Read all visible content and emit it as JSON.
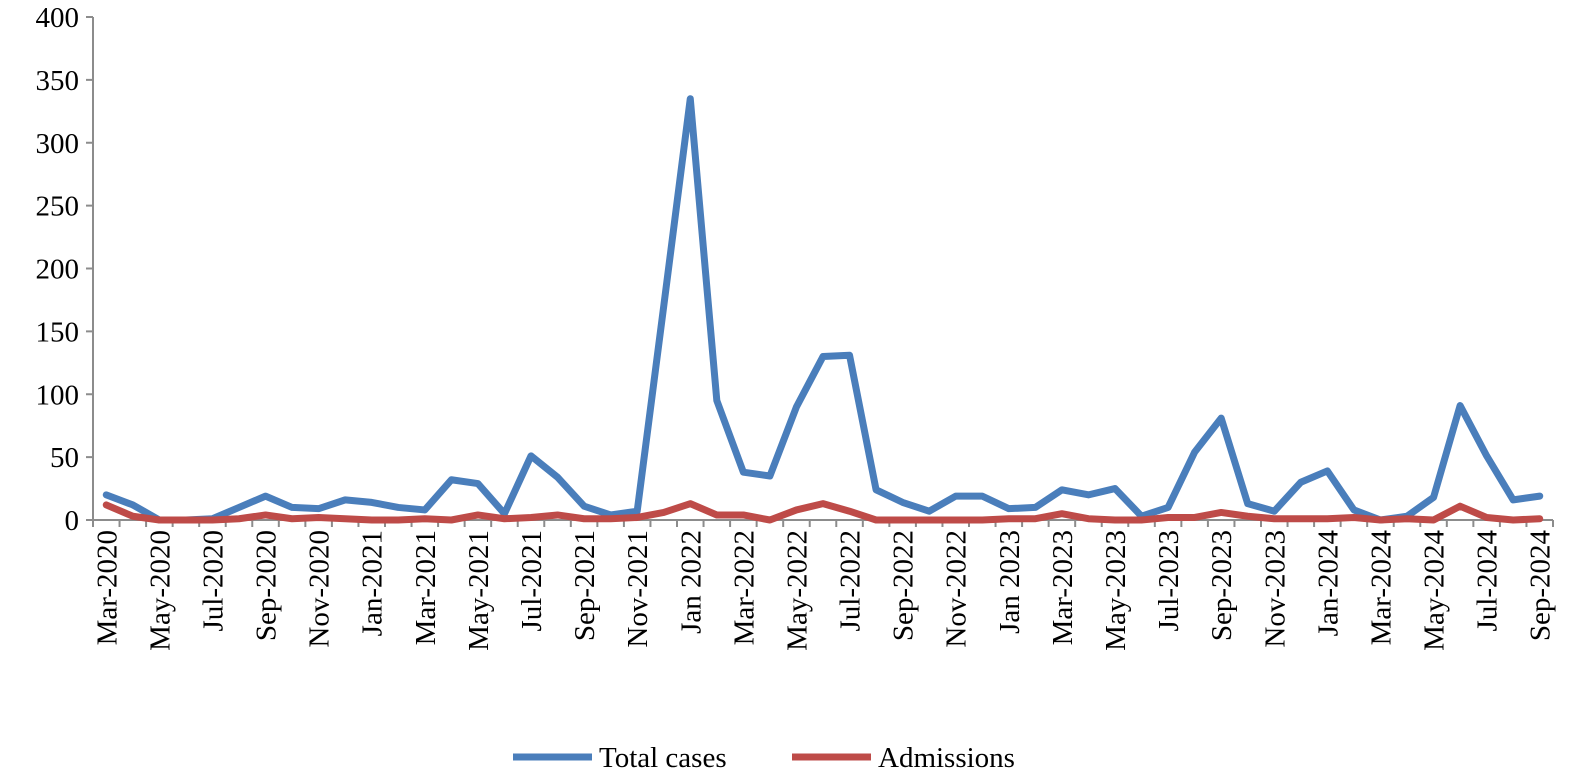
{
  "chart_data": {
    "type": "line",
    "title": "",
    "xlabel": "",
    "ylabel": "",
    "ylim": [
      0,
      400
    ],
    "yticks": [
      0,
      50,
      100,
      150,
      200,
      250,
      300,
      350,
      400
    ],
    "grid": false,
    "legend_position": "bottom",
    "categories": [
      "Mar-2020",
      "Apr-2020",
      "May-2020",
      "Jun-2020",
      "Jul-2020",
      "Aug-2020",
      "Sep-2020",
      "Oct-2020",
      "Nov-2020",
      "Dec-2020",
      "Jan-2021",
      "Feb-2021",
      "Mar-2021",
      "Apr-2021",
      "May-2021",
      "Jun-2021",
      "Jul-2021",
      "Aug-2021",
      "Sep-2021",
      "Oct-2021",
      "Nov-2021",
      "Dec-2021",
      "Jan 2022",
      "Feb-2022",
      "Mar-2022",
      "Apr-2022",
      "May-2022",
      "Jun-2022",
      "Jul-2022",
      "Aug-2022",
      "Sep-2022",
      "Oct-2022",
      "Nov-2022",
      "Dec-2022",
      "Jan 2023",
      "Feb-2023",
      "Mar-2023",
      "Apr-2023",
      "May-2023",
      "Jun-2023",
      "Jul-2023",
      "Aug-2023",
      "Sep-2023",
      "Oct-2023",
      "Nov-2023",
      "Dec-2023",
      "Jan-2024",
      "Feb-2024",
      "Mar-2024",
      "Apr-2024",
      "May-2024",
      "Jun-2024",
      "Jul-2024",
      "Aug-2024",
      "Sep-2024"
    ],
    "tick_labels": [
      "Mar-2020",
      "May-2020",
      "Jul-2020",
      "Sep-2020",
      "Nov-2020",
      "Jan-2021",
      "Mar-2021",
      "May-2021",
      "Jul-2021",
      "Sep-2021",
      "Nov-2021",
      "Jan 2022",
      "Mar-2022",
      "May-2022",
      "Jul-2022",
      "Sep-2022",
      "Nov-2022",
      "Jan 2023",
      "Mar-2023",
      "May-2023",
      "Jul-2023",
      "Sep-2023",
      "Nov-2023",
      "Jan-2024",
      "Mar-2024",
      "May-2024",
      "Jul-2024",
      "Sep-2024"
    ],
    "series": [
      {
        "name": "Total cases",
        "color": "#4a7ebb",
        "values": [
          20,
          12,
          0,
          0,
          1,
          10,
          19,
          10,
          9,
          16,
          14,
          10,
          8,
          32,
          29,
          5,
          51,
          34,
          11,
          4,
          7,
          170,
          335,
          95,
          38,
          35,
          90,
          130,
          131,
          24,
          14,
          7,
          19,
          19,
          9,
          10,
          24,
          20,
          25,
          3,
          10,
          54,
          81,
          13,
          7,
          30,
          39,
          8,
          0,
          3,
          18,
          91,
          51,
          16,
          19
        ]
      },
      {
        "name": "Admissions",
        "color": "#be4b48",
        "values": [
          12,
          3,
          0,
          0,
          0,
          1,
          4,
          1,
          2,
          1,
          0,
          0,
          1,
          0,
          4,
          1,
          2,
          4,
          1,
          1,
          2,
          6,
          13,
          4,
          4,
          0,
          8,
          13,
          7,
          0,
          0,
          0,
          0,
          0,
          1,
          1,
          5,
          1,
          0,
          0,
          2,
          2,
          6,
          3,
          1,
          1,
          1,
          2,
          0,
          1,
          0,
          11,
          2,
          0,
          1
        ]
      }
    ]
  }
}
